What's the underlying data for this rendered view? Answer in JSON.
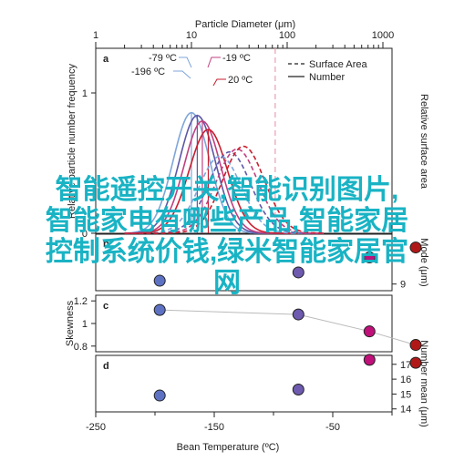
{
  "chart_data": {
    "title": "",
    "top_axis": {
      "label": "Particle Diameter (μm)",
      "scale": "log",
      "ticks": [
        {
          "v": 1,
          "t": "1"
        },
        {
          "v": 10,
          "t": "10"
        },
        {
          "v": 100,
          "t": "100"
        },
        {
          "v": 1000,
          "t": "1000"
        }
      ]
    },
    "bottom_axis": {
      "label": "Bean Temperature (ºC)",
      "range": [
        -250,
        0
      ],
      "ticks": [
        {
          "v": -250,
          "t": "-250"
        },
        {
          "v": -150,
          "t": "-150"
        },
        {
          "v": -50,
          "t": "-50"
        }
      ]
    },
    "panels": [
      {
        "id": "a",
        "type": "line",
        "ylabel_left": "Relative particle number frequency",
        "ylabel_right": "Relative surface area",
        "left_ticks": [
          {
            "v": 0,
            "t": "0"
          },
          {
            "v": 1,
            "t": "1"
          }
        ],
        "legend": [
          "Surface Area",
          "Number"
        ],
        "annotations": [
          {
            "text": "-79 ºC",
            "color": "#7fa6da"
          },
          {
            "text": "-196 ºC",
            "color": "#333333"
          },
          {
            "text": "-19 ºC",
            "color": "#c04080"
          },
          {
            "text": "20 ºC",
            "color": "#c81e2e"
          }
        ],
        "series": [
          {
            "name": "-196 ºC",
            "kind": "Number",
            "color": "#7fa6da",
            "peak_um": 10,
            "height": 0.86,
            "width": 0.19
          },
          {
            "name": "-79 ºC",
            "kind": "Number",
            "color": "#5e57a8",
            "peak_um": 11.5,
            "height": 0.84,
            "width": 0.19
          },
          {
            "name": "-19 ºC",
            "kind": "Number",
            "color": "#c04080",
            "peak_um": 13,
            "height": 0.8,
            "width": 0.19
          },
          {
            "name": "20 ºC",
            "kind": "Number",
            "color": "#c81e2e",
            "peak_um": 15,
            "height": 0.74,
            "width": 0.2
          },
          {
            "name": "-196 ºC",
            "kind": "Surface Area",
            "color": "#7fa6da",
            "peak_um": 20,
            "height": 0.55,
            "width": 0.22
          },
          {
            "name": "-79 ºC",
            "kind": "Surface Area",
            "color": "#5e57a8",
            "peak_um": 25,
            "height": 0.58,
            "width": 0.22
          },
          {
            "name": "-19 ºC",
            "kind": "Surface Area",
            "color": "#c04080",
            "peak_um": 30,
            "height": 0.6,
            "width": 0.22
          },
          {
            "name": "20 ºC",
            "kind": "Surface Area",
            "color": "#c81e2e",
            "peak_um": 35,
            "height": 0.62,
            "width": 0.22
          }
        ],
        "reference_line_um": 75
      },
      {
        "id": "b",
        "type": "scatter",
        "ylabel_right": "Mode (μm)",
        "right_ticks": [
          {
            "v": 9,
            "t": "9"
          }
        ],
        "ylim": [
          8.6,
          12
        ],
        "points": [
          {
            "x": -196,
            "y": 9.2,
            "color": "#5e72c4"
          },
          {
            "x": -79,
            "y": 9.7,
            "color": "#6e5aae"
          },
          {
            "x": -19,
            "y": 10.6,
            "color": "#c0107a"
          },
          {
            "x": 20,
            "y": 11.2,
            "color": "#b01818"
          }
        ]
      },
      {
        "id": "c",
        "type": "scatter",
        "ylabel_left": "Skewness",
        "left_ticks": [
          {
            "v": 0.8,
            "t": "0.8"
          },
          {
            "v": 1,
            "t": "1"
          },
          {
            "v": 1.2,
            "t": "1.2"
          }
        ],
        "ylim": [
          0.75,
          1.25
        ],
        "points": [
          {
            "x": -196,
            "y": 1.12,
            "color": "#5e72c4"
          },
          {
            "x": -79,
            "y": 1.08,
            "color": "#6e5aae"
          },
          {
            "x": -19,
            "y": 0.93,
            "color": "#c0107a"
          },
          {
            "x": 20,
            "y": 0.81,
            "color": "#b01818"
          }
        ]
      },
      {
        "id": "d",
        "type": "scatter",
        "ylabel_right": "Number mean (μm)",
        "right_ticks": [
          {
            "v": 14,
            "t": "14"
          },
          {
            "v": 15,
            "t": "15"
          },
          {
            "v": 16,
            "t": "16"
          },
          {
            "v": 17,
            "t": "17"
          }
        ],
        "ylim": [
          13.8,
          17.6
        ],
        "points": [
          {
            "x": -196,
            "y": 14.9,
            "color": "#5e72c4"
          },
          {
            "x": -79,
            "y": 15.3,
            "color": "#6e5aae"
          },
          {
            "x": -19,
            "y": 17.3,
            "color": "#c0107a"
          },
          {
            "x": 20,
            "y": 17.1,
            "color": "#b01818"
          }
        ]
      }
    ]
  },
  "watermark": {
    "lines": [
      "智能遥控开关,智能识别图片,",
      "智能家电有哪些产品,智能家居",
      "控制系统价钱,绿米智能家居官",
      "网"
    ]
  }
}
